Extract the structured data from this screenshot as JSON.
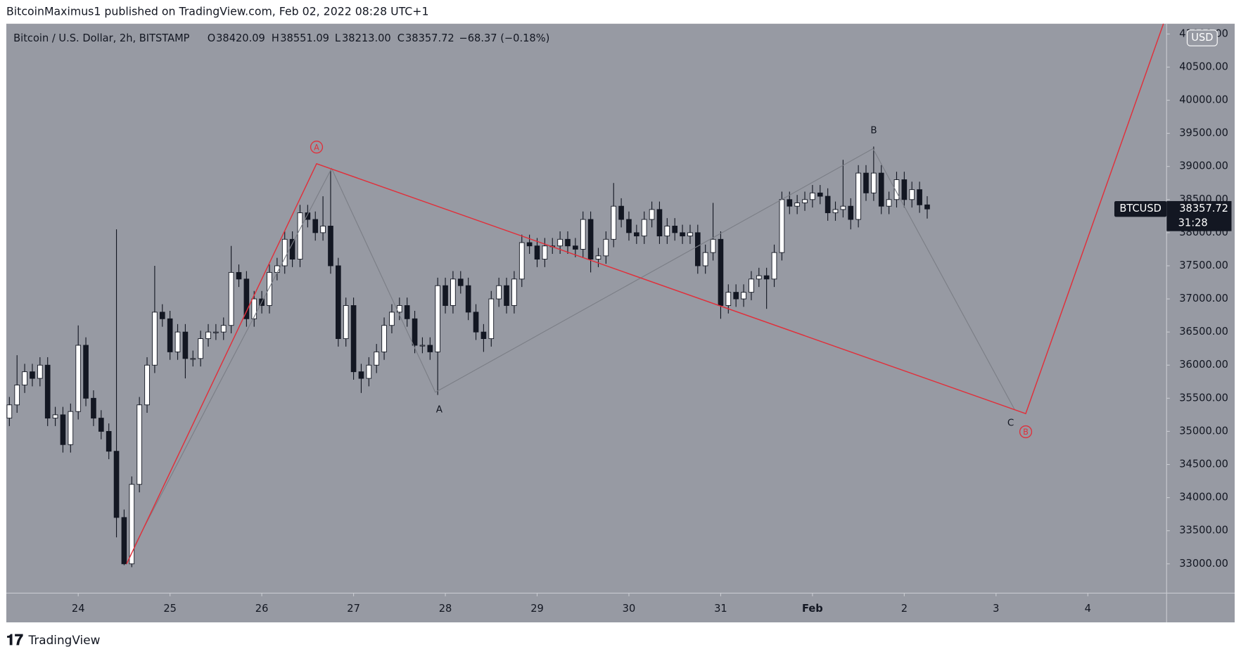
{
  "header": "BitcoinMaximus1 published on TradingView.com, Feb 02, 2022 08:28 UTC+1",
  "footer": "TradingView",
  "chart_data": {
    "type": "candlestick",
    "title": "Bitcoin / U.S. Dollar, 2h, BITSTAMP",
    "legend": {
      "o": "O",
      "o_value": "38420.09",
      "h": "H",
      "h_value": "38551.09",
      "l": "L",
      "l_value": "38213.00",
      "c": "C",
      "c_value": "38357.72",
      "change": "−68.37 (−0.18%)"
    },
    "currency": "USD",
    "last_price": {
      "symbol": "BTCUSD",
      "label": "38357.72",
      "countdown": "31:28"
    },
    "wave_labels": [
      "A",
      "B",
      "C"
    ],
    "major_wave_labels": [
      "A",
      "B"
    ],
    "up_color": "#ffffff",
    "down_color": "#131722",
    "line_color": "#e0303b",
    "grid": false,
    "open": [
      35200,
      35400,
      35700,
      35900,
      35800,
      36000,
      35200,
      35250,
      34800,
      35300,
      36300,
      35500,
      35200,
      35000,
      34700,
      33700,
      33000,
      34200,
      35400,
      36000,
      36800,
      36700,
      36200,
      36500,
      36100,
      36100,
      36400,
      36500,
      36500,
      36600,
      37400,
      37300,
      36700,
      37000,
      36900,
      37400,
      37500,
      37900,
      37600,
      38300,
      38200,
      38000,
      38100,
      37500,
      36400,
      36900,
      35900,
      35800,
      36000,
      36200,
      36600,
      36800,
      36900,
      36700,
      36300,
      36300,
      36200,
      37200,
      36900,
      37300,
      37200,
      36800,
      36500,
      36400,
      37000,
      37200,
      36900,
      37300,
      37850,
      37800,
      37600,
      37800,
      37800,
      37900,
      37800,
      37750,
      38200,
      37600,
      37650,
      37900,
      38400,
      38200,
      38000,
      37950,
      38200,
      38350,
      37950,
      38100,
      38000,
      37950,
      38000,
      37500,
      37700,
      37900,
      36900,
      37100,
      37000,
      37100,
      37300,
      37350,
      37300,
      37700,
      38500,
      38400,
      38450,
      38500,
      38600,
      38550,
      38300,
      38350,
      38400,
      38200,
      38900,
      38600,
      38900,
      38400,
      38500,
      38800,
      38500,
      38650,
      38420.09
    ],
    "high": [
      35520,
      36150,
      36020,
      36020,
      36120,
      36120,
      35370,
      35370,
      35420,
      36600,
      36420,
      35620,
      35320,
      35120,
      38050,
      33820,
      34320,
      35520,
      36120,
      37500,
      36920,
      36820,
      36620,
      36620,
      36220,
      36520,
      36620,
      36620,
      36720,
      37800,
      37520,
      37420,
      37120,
      37120,
      37520,
      37620,
      38020,
      38020,
      38420,
      38420,
      38320,
      38550,
      38950,
      37620,
      37020,
      37020,
      36020,
      36120,
      36320,
      36720,
      36920,
      37020,
      37020,
      36820,
      36420,
      36420,
      37320,
      37320,
      37420,
      37420,
      37320,
      36920,
      36620,
      37120,
      37320,
      37320,
      37420,
      37970,
      37970,
      37920,
      37920,
      37920,
      38020,
      38020,
      37920,
      38320,
      38320,
      37770,
      38020,
      38750,
      38520,
      38320,
      38120,
      38320,
      38470,
      38470,
      38220,
      38220,
      38120,
      38120,
      38120,
      37820,
      38450,
      38020,
      37220,
      37220,
      37220,
      37420,
      37470,
      37470,
      37820,
      38620,
      38620,
      38570,
      38620,
      38720,
      38720,
      38670,
      38470,
      39100,
      38520,
      39020,
      39020,
      39300,
      39020,
      38620,
      38920,
      38920,
      38770,
      38770,
      38551.09
    ],
    "low": [
      35080,
      35280,
      35580,
      35680,
      35680,
      35080,
      35080,
      34680,
      34680,
      35180,
      35380,
      35080,
      34880,
      34580,
      33400,
      32980,
      32950,
      34080,
      35280,
      35880,
      36580,
      36080,
      36080,
      35800,
      35980,
      35980,
      36280,
      36380,
      36380,
      36480,
      37180,
      36580,
      36580,
      36780,
      36780,
      37280,
      37380,
      37480,
      37480,
      38080,
      37880,
      37880,
      37380,
      36280,
      36280,
      35780,
      35580,
      35680,
      35880,
      36080,
      36480,
      36680,
      36580,
      36180,
      36180,
      36080,
      35550,
      36780,
      36780,
      37080,
      36680,
      36380,
      36200,
      36280,
      36880,
      36780,
      36780,
      37180,
      37680,
      37480,
      37480,
      37680,
      37680,
      37680,
      37630,
      37630,
      37400,
      37480,
      37530,
      37780,
      38080,
      37880,
      37830,
      37830,
      38080,
      37830,
      37830,
      37880,
      37830,
      37830,
      37380,
      37380,
      37580,
      36700,
      36780,
      36880,
      36880,
      36980,
      37180,
      36850,
      37180,
      37580,
      38280,
      38280,
      38330,
      38380,
      38430,
      38180,
      38180,
      38230,
      38050,
      38080,
      38480,
      38480,
      38280,
      38280,
      38380,
      38380,
      38380,
      38300,
      38213
    ],
    "close": [
      35400,
      35700,
      35900,
      35800,
      36000,
      35200,
      35250,
      34800,
      35300,
      36300,
      35500,
      35200,
      35000,
      34700,
      33700,
      33000,
      34200,
      35400,
      36000,
      36800,
      36700,
      36200,
      36500,
      36100,
      36100,
      36400,
      36500,
      36500,
      36600,
      37400,
      37300,
      36700,
      37000,
      36900,
      37400,
      37500,
      37900,
      37600,
      38300,
      38200,
      38000,
      38100,
      37500,
      36400,
      36900,
      35900,
      35800,
      36000,
      36200,
      36600,
      36800,
      36900,
      36700,
      36300,
      36300,
      36200,
      37200,
      36900,
      37300,
      37200,
      36800,
      36500,
      36400,
      37000,
      37200,
      36900,
      37300,
      37850,
      37800,
      37600,
      37800,
      37800,
      37900,
      37800,
      37750,
      38200,
      37600,
      37650,
      37900,
      38400,
      38200,
      38000,
      37950,
      38200,
      38350,
      37950,
      38100,
      38000,
      37950,
      38000,
      37500,
      37700,
      37900,
      36900,
      37100,
      37000,
      37100,
      37300,
      37350,
      37300,
      37700,
      38500,
      38400,
      38450,
      38500,
      38600,
      38550,
      38300,
      38350,
      38400,
      38200,
      38900,
      38600,
      38900,
      38400,
      38500,
      38800,
      38500,
      38650,
      38420,
      38357.72
    ],
    "xlim": [
      -0.4,
      151.3
    ],
    "xticks": [
      {
        "value": 9,
        "label": "24"
      },
      {
        "value": 21,
        "label": "25"
      },
      {
        "value": 33,
        "label": "26"
      },
      {
        "value": 45,
        "label": "27"
      },
      {
        "value": 57,
        "label": "28"
      },
      {
        "value": 69,
        "label": "29"
      },
      {
        "value": 81,
        "label": "30"
      },
      {
        "value": 93,
        "label": "31"
      },
      {
        "value": 105,
        "label": "Feb"
      },
      {
        "value": 117,
        "label": "2"
      },
      {
        "value": 129,
        "label": "3"
      },
      {
        "value": 141,
        "label": "4"
      }
    ],
    "ylim": [
      32558,
      41155
    ],
    "yticks": [
      {
        "value": 33000,
        "label": "33000.00"
      },
      {
        "value": 33500,
        "label": "33500.00"
      },
      {
        "value": 34000,
        "label": "34000.00"
      },
      {
        "value": 34500,
        "label": "34500.00"
      },
      {
        "value": 35000,
        "label": "35000.00"
      },
      {
        "value": 35500,
        "label": "35500.00"
      },
      {
        "value": 36000,
        "label": "36000.00"
      },
      {
        "value": 36500,
        "label": "36500.00"
      },
      {
        "value": 37000,
        "label": "37000.00"
      },
      {
        "value": 37500,
        "label": "37500.00"
      },
      {
        "value": 38000,
        "label": "38000.00"
      },
      {
        "value": 38500,
        "label": "38500.00"
      },
      {
        "value": 39000,
        "label": "39000.00"
      },
      {
        "value": 39500,
        "label": "39500.00"
      },
      {
        "value": 40000,
        "label": "40000.00"
      },
      {
        "value": 40500,
        "label": "40500.00"
      },
      {
        "value": 41000,
        "label": "41000.00"
      }
    ]
  }
}
